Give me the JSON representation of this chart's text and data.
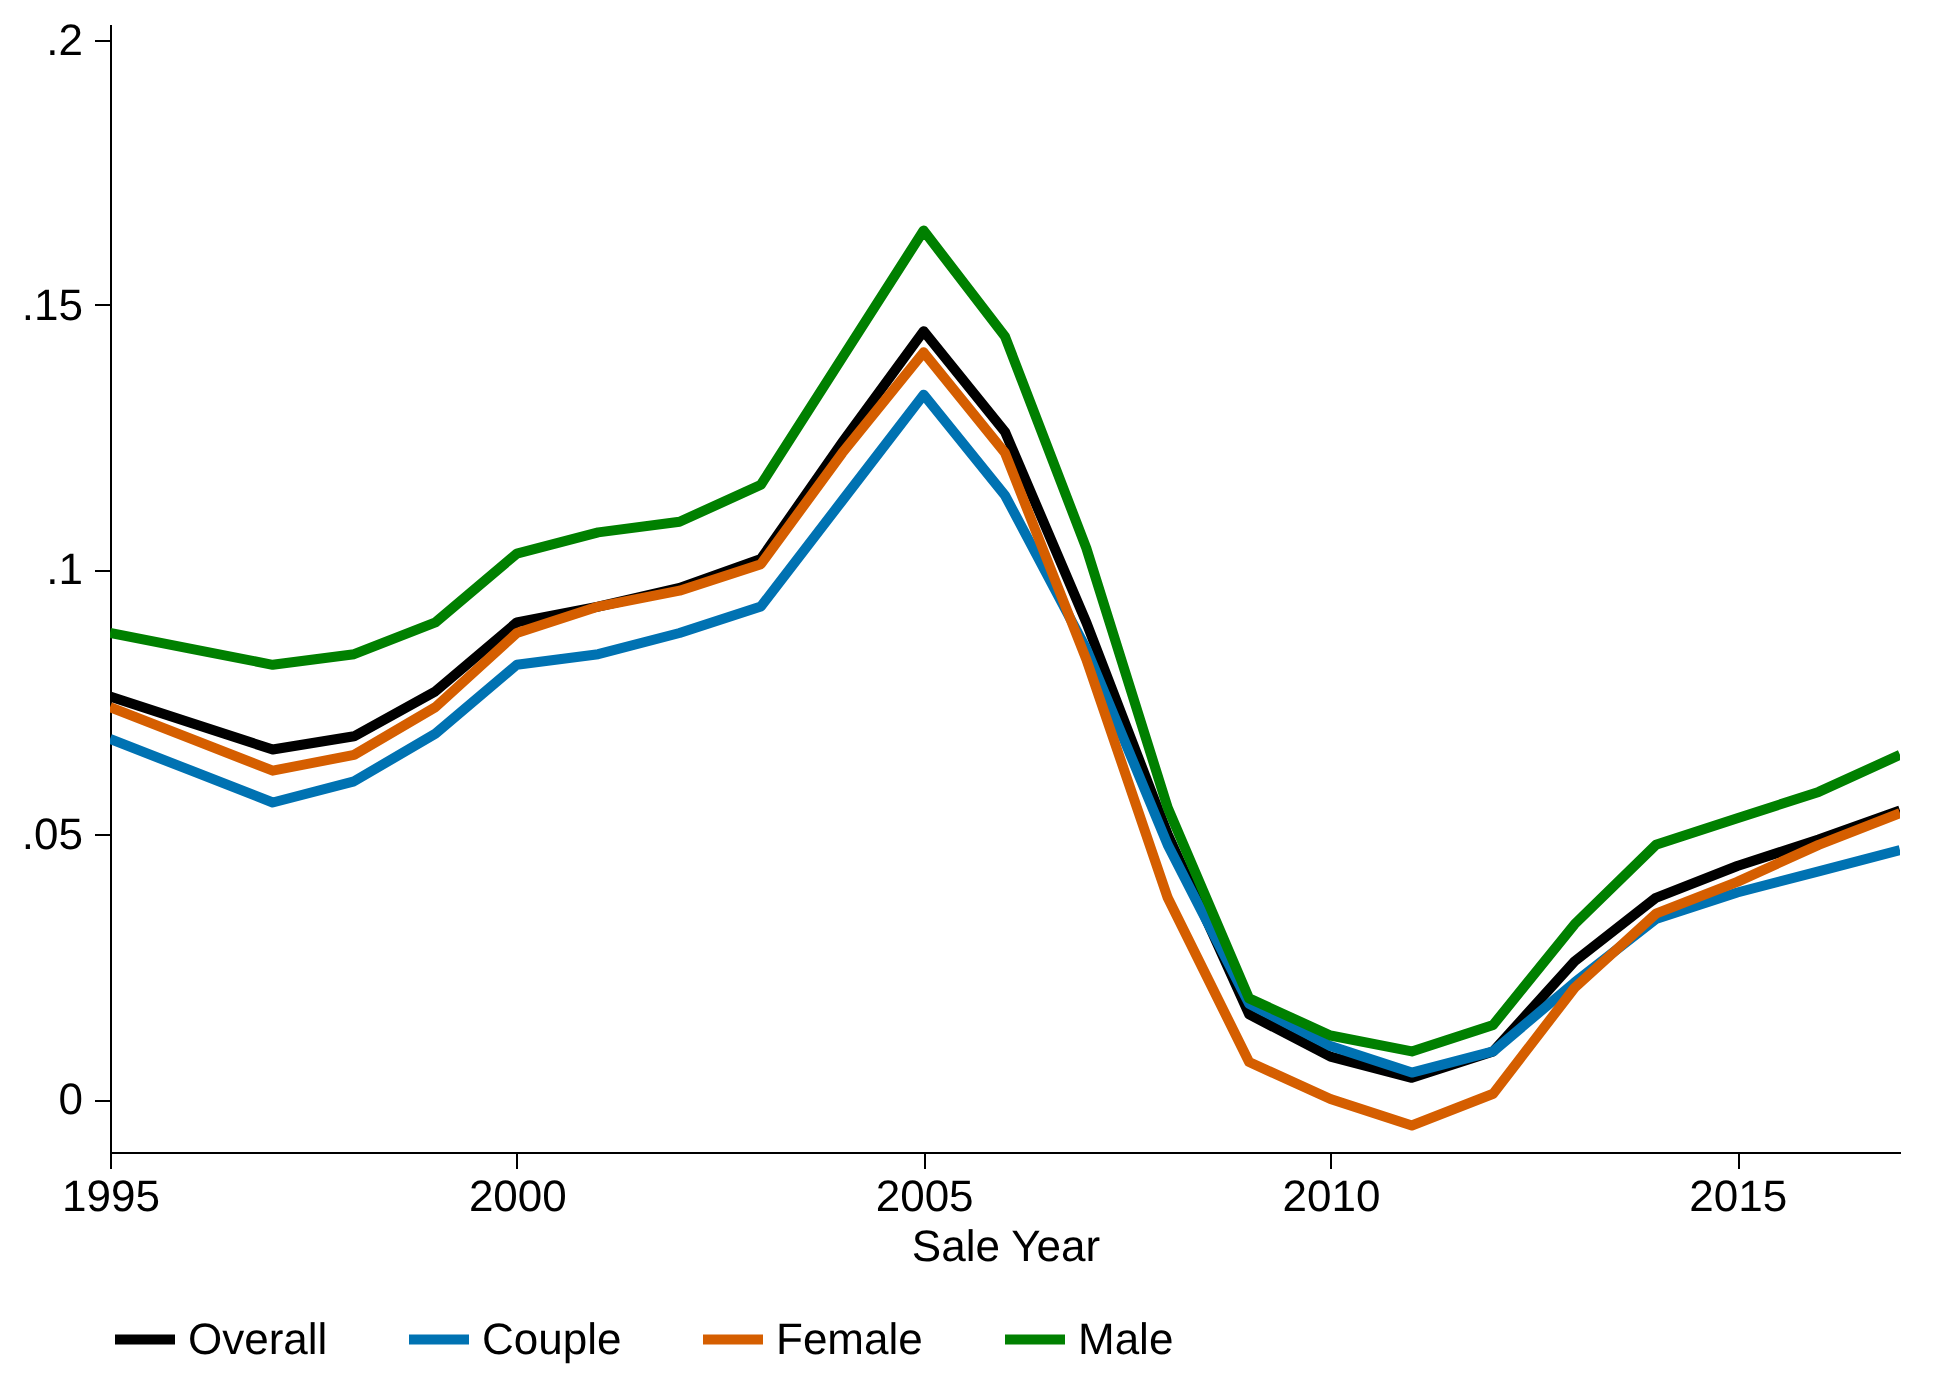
{
  "chart_data": {
    "type": "line",
    "xlabel": "Sale Year",
    "x": [
      1995,
      1996,
      1997,
      1998,
      1999,
      2000,
      2001,
      2002,
      2003,
      2004,
      2005,
      2006,
      2007,
      2008,
      2009,
      2010,
      2011,
      2012,
      2013,
      2014,
      2015,
      2016,
      2017
    ],
    "series": [
      {
        "name": "Overall",
        "color": "#000000",
        "values": [
          0.076,
          0.071,
          0.066,
          0.0685,
          0.077,
          0.09,
          0.093,
          0.0965,
          0.102,
          0.124,
          0.145,
          0.126,
          0.09,
          0.05,
          0.016,
          0.008,
          0.004,
          0.009,
          0.026,
          0.038,
          0.044,
          0.049,
          0.0545
        ]
      },
      {
        "name": "Couple",
        "color": "#0072b2",
        "values": [
          0.068,
          0.062,
          0.056,
          0.06,
          0.069,
          0.082,
          0.084,
          0.088,
          0.093,
          0.113,
          0.133,
          0.114,
          0.085,
          0.048,
          0.018,
          0.01,
          0.005,
          0.009,
          0.022,
          0.034,
          0.039,
          0.043,
          0.047
        ]
      },
      {
        "name": "Female",
        "color": "#d55e00",
        "values": [
          0.074,
          0.068,
          0.062,
          0.065,
          0.074,
          0.088,
          0.093,
          0.096,
          0.101,
          0.122,
          0.141,
          0.122,
          0.083,
          0.038,
          0.007,
          0.0,
          -0.005,
          0.001,
          0.021,
          0.035,
          0.041,
          0.048,
          0.054
        ]
      },
      {
        "name": "Male",
        "color": "#008000",
        "values": [
          0.088,
          0.085,
          0.082,
          0.084,
          0.09,
          0.103,
          0.107,
          0.109,
          0.116,
          0.14,
          0.164,
          0.144,
          0.104,
          0.055,
          0.019,
          0.012,
          0.009,
          0.014,
          0.033,
          0.048,
          0.053,
          0.058,
          0.065
        ]
      }
    ],
    "xlim": [
      1995,
      2017
    ],
    "xticks": [
      1995,
      2000,
      2005,
      2010,
      2015
    ],
    "ylim": [
      -0.01,
      0.203
    ],
    "yticks": [
      {
        "value": 0,
        "label": "0"
      },
      {
        "value": 0.05,
        "label": ".05"
      },
      {
        "value": 0.1,
        "label": ".1"
      },
      {
        "value": 0.15,
        "label": ".15"
      },
      {
        "value": 0.2,
        "label": ".2"
      }
    ],
    "grid": false,
    "legend": "bottom",
    "marker": "none",
    "line_style": "solid"
  }
}
